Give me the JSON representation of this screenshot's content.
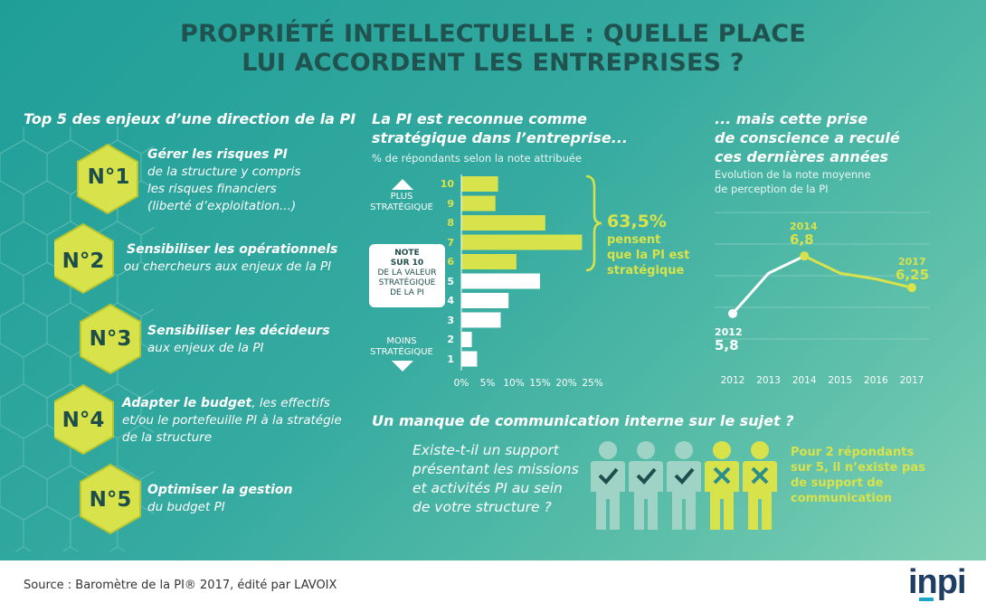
{
  "title": {
    "line1": "PROPRIÉTÉ INTELLECTUELLE : QUELLE PLACE",
    "line2": "LUI ACCORDENT LES ENTREPRISES ?"
  },
  "top5": {
    "heading": "Top 5 des enjeux d’une direction de la PI",
    "items": [
      {
        "num": "N°1",
        "title": "Gérer les risques PI",
        "lines": [
          "de la structure y compris",
          "les risques financiers",
          "(liberté d’exploitation...)"
        ]
      },
      {
        "num": "N°2",
        "title": "Sensibiliser les opérationnels",
        "lines": [
          "ou chercheurs aux enjeux de la PI"
        ]
      },
      {
        "num": "N°3",
        "title": "Sensibiliser les décideurs",
        "lines": [
          "aux enjeux de la PI"
        ]
      },
      {
        "num": "N°4",
        "title": "Adapter le budget",
        "title_rest": ", les effectifs",
        "lines": [
          "et/ou le portefeuille PI à la stratégie",
          "de la structure"
        ]
      },
      {
        "num": "N°5",
        "title": "Optimiser la gestion",
        "lines": [
          "du budget PI"
        ]
      }
    ]
  },
  "strategic": {
    "heading1": "La PI est reconnue comme",
    "heading2": "stratégique dans l’entreprise...",
    "subtitle": "% de répondants selon la note attribuée",
    "label_top1": "PLUS",
    "label_top2": "STRATÉGIQUE",
    "label_bottom1": "MOINS",
    "label_bottom2": "STRATÉGIQUE",
    "note_box": [
      "NOTE",
      "SUR 10",
      "DE LA VALEUR",
      "STRATÉGIQUE",
      "DE LA PI"
    ],
    "callout_pct": "63,5%",
    "callout_lines": [
      "pensent",
      "que la PI est",
      "stratégique"
    ]
  },
  "trend": {
    "heading1": "... mais cette prise",
    "heading2": "de conscience a reculé",
    "heading3": "ces dernières années",
    "sub1": "Evolution de la note moyenne",
    "sub2": "de perception de la PI",
    "labels": [
      {
        "year": "2012",
        "value": "5,8"
      },
      {
        "year": "2014",
        "value": "6,8"
      },
      {
        "year": "2017",
        "value": "6,25"
      }
    ]
  },
  "communication": {
    "heading": "Un manque de communication interne sur le sujet ?",
    "question": [
      "Existe-t-il un support",
      "présentant les missions",
      "et activités PI au sein",
      "de votre structure ?"
    ],
    "answer": [
      "Pour 2 répondants",
      "sur 5, il n’existe pas",
      "de support de",
      "communication"
    ],
    "people": [
      "check",
      "check",
      "check",
      "cross",
      "cross"
    ]
  },
  "footer": {
    "source": "Source : Baromètre de la PI® 2017, édité par LAVOIX",
    "logo": "inpi"
  },
  "colors": {
    "yellow": "#d8e24a",
    "white": "#ffffff",
    "dark": "#1e4e4b",
    "person_green": "#9fd3c6"
  },
  "chart_data": [
    {
      "type": "bar",
      "orientation": "horizontal",
      "title": "La PI est reconnue comme stratégique dans l’entreprise...",
      "ylabel": "Note sur 10 de la valeur stratégique de la PI",
      "xlabel": "% de répondants selon la note attribuée",
      "categories": [
        "10",
        "9",
        "8",
        "7",
        "6",
        "5",
        "4",
        "3",
        "2",
        "1"
      ],
      "values": [
        7,
        6.5,
        16,
        23,
        10.5,
        15,
        9,
        7.5,
        2,
        3
      ],
      "highlight": [
        "10",
        "9",
        "8",
        "7",
        "6"
      ],
      "xticks": [
        "0%",
        "5%",
        "10%",
        "15%",
        "20%",
        "25%"
      ],
      "xlim": [
        0,
        25
      ]
    },
    {
      "type": "line",
      "title": "Evolution de la note moyenne de perception de la PI",
      "x": [
        "2012",
        "2013",
        "2014",
        "2015",
        "2016",
        "2017"
      ],
      "values": [
        5.8,
        6.5,
        6.8,
        6.5,
        6.4,
        6.25
      ],
      "labeled_points": [
        "2012",
        "2014",
        "2017"
      ],
      "ylim": [
        5.2,
        7.4
      ]
    }
  ]
}
